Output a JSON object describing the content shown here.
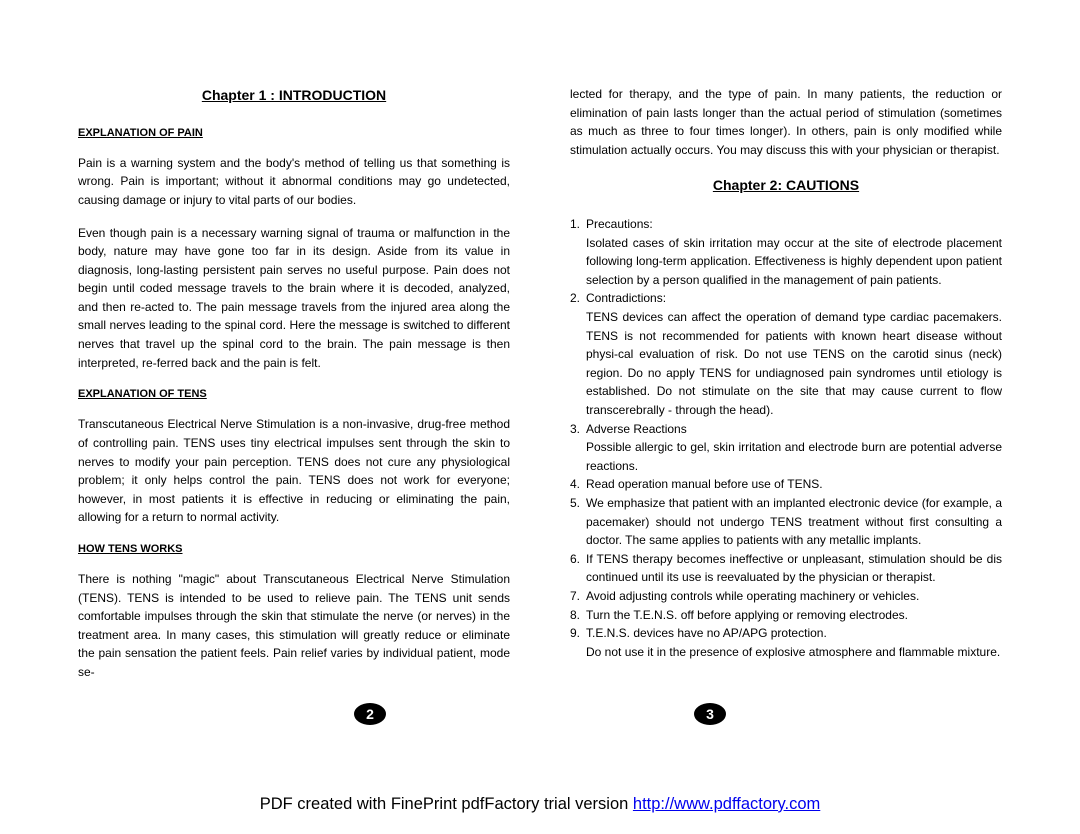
{
  "left": {
    "chapter_title": "Chapter 1 : INTRODUCTION",
    "sections": [
      {
        "heading": "EXPLANATION OF PAIN",
        "paragraphs": [
          "Pain is a warning system and the body's method of telling us that something is wrong.   Pain is important; without it abnormal conditions may go undetected, causing damage or injury to vital parts of our bodies.",
          "Even though pain is a necessary warning signal of trauma or malfunction in the body, nature may have gone too far in its design.  Aside from its value in diagnosis, long-lasting persistent pain serves no useful purpose.  Pain does not begin until coded message travels to the brain where it is decoded, analyzed, and then re-acted to.  The pain message travels from the injured area along the small nerves leading to the spinal cord.   Here the message is switched to different nerves that travel up the spinal cord to the brain.  The pain message is then interpreted, re-ferred back and the pain is felt."
        ]
      },
      {
        "heading": "EXPLANATION OF TENS",
        "paragraphs": [
          "Transcutaneous Electrical Nerve Stimulation is a non-invasive, drug-free method of controlling pain.  TENS uses tiny electrical impulses sent through the skin to nerves to modify your pain perception.  TENS does not cure any physiological problem; it only helps control the pain.  TENS does not work for everyone; however, in most patients it is effective in reducing or eliminating the pain, allowing for a return to normal activity."
        ]
      },
      {
        "heading": "HOW TENS WORKS",
        "paragraphs": [
          "There is nothing \"magic\" about Transcutaneous Electrical Nerve Stimulation (TENS).  TENS is intended to be used to relieve pain.  The TENS unit sends comfortable impulses through the skin that stimulate the nerve (or nerves) in the treatment area.  In many cases, this stimulation will greatly reduce or eliminate the pain sensation the patient feels.  Pain relief varies by individual patient, mode se-"
        ]
      }
    ],
    "page_number": "2"
  },
  "right": {
    "top_paragraph": "lected for therapy, and the type of pain.  In many patients, the reduction or elimination of pain lasts longer than the actual period of stimulation (sometimes as much as three to four times longer).  In others, pain is only modified while stimulation actually occurs.  You may discuss this with your physician or therapist.",
    "chapter_title": "Chapter 2: CAUTIONS",
    "list": [
      {
        "num": "1.",
        "text": "Precautions:"
      },
      {
        "num": "",
        "text": "Isolated cases of skin irritation may occur at the site of electrode placement following long-term application. Effectiveness is highly dependent upon patient selection by a person qualified in the management of pain patients."
      },
      {
        "num": "2.",
        "text": "Contradictions:"
      },
      {
        "num": "",
        "text": "TENS devices can affect the operation of demand type cardiac pacemakers. TENS is not recommended for patients with known heart disease without physi-cal evaluation of risk. Do not use TENS on the carotid sinus (neck) region. Do no apply TENS for undiagnosed pain syndromes until etiology is established. Do not stimulate on the site that may cause current to flow transcerebrally - through the head)."
      },
      {
        "num": "3.",
        "text": "Adverse Reactions"
      },
      {
        "num": "",
        "text": "Possible allergic to gel, skin irritation and electrode burn are potential adverse reactions."
      },
      {
        "num": "4.",
        "text": "Read operation manual before use of TENS."
      },
      {
        "num": "5.",
        "text": "We emphasize that patient with an implanted electronic device (for example, a pacemaker) should not undergo TENS treatment without first consulting a doctor. The same applies to patients with any metallic implants."
      },
      {
        "num": "6.",
        "text": "If TENS therapy becomes ineffective or unpleasant, stimulation should be dis continued until its use is reevaluated by the physician or therapist."
      },
      {
        "num": "7.",
        "text": "Avoid adjusting controls while operating machinery or vehicles."
      },
      {
        "num": "8.",
        "text": "Turn the T.E.N.S. off before applying or removing electrodes."
      },
      {
        "num": "9.",
        "text": "T.E.N.S. devices have no AP/APG protection."
      },
      {
        "num": "",
        "text": "Do not use it in the presence of explosive atmosphere and flammable mixture."
      }
    ],
    "page_number": "3"
  },
  "footer": {
    "text": "PDF created with FinePrint pdfFactory trial version ",
    "link_text": "http://www.pdffactory.com"
  }
}
